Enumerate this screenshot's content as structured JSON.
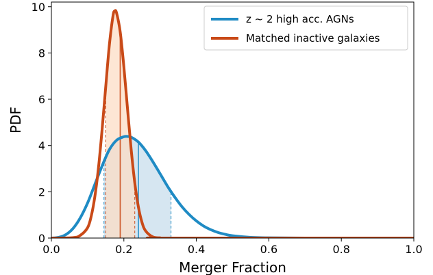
{
  "chart_data": {
    "type": "line",
    "xlabel": "Merger Fraction",
    "ylabel": "PDF",
    "xlim": [
      0.0,
      1.0
    ],
    "ylim": [
      0,
      10.2
    ],
    "xticks": [
      "0.0",
      "0.2",
      "0.4",
      "0.6",
      "0.8",
      "1.0"
    ],
    "yticks": [
      "0",
      "2",
      "4",
      "6",
      "8",
      "10"
    ],
    "legend_position": "top-right",
    "series": [
      {
        "name": "z ~ 2 high acc. AGNs",
        "color": "#1f8bc4",
        "fill_color": "#c6dcec",
        "x": [
          0.0,
          0.02,
          0.04,
          0.06,
          0.08,
          0.1,
          0.12,
          0.14,
          0.16,
          0.18,
          0.2,
          0.21,
          0.22,
          0.24,
          0.26,
          0.28,
          0.3,
          0.32,
          0.34,
          0.36,
          0.38,
          0.4,
          0.42,
          0.44,
          0.46,
          0.48,
          0.5,
          0.55,
          0.6,
          0.7,
          0.8,
          1.0
        ],
        "y": [
          0.0,
          0.03,
          0.15,
          0.42,
          0.88,
          1.52,
          2.32,
          3.12,
          3.82,
          4.23,
          4.38,
          4.39,
          4.36,
          4.15,
          3.78,
          3.3,
          2.78,
          2.25,
          1.78,
          1.36,
          1.02,
          0.74,
          0.52,
          0.36,
          0.24,
          0.16,
          0.1,
          0.03,
          0.01,
          0.0,
          0.0,
          0.0
        ],
        "median": 0.24,
        "interval": [
          0.145,
          0.33
        ]
      },
      {
        "name": "Matched inactive galaxies",
        "color": "#c94a18",
        "fill_color": "#fcdcc4",
        "x": [
          0.0,
          0.06,
          0.08,
          0.1,
          0.11,
          0.12,
          0.13,
          0.14,
          0.15,
          0.16,
          0.17,
          0.175,
          0.18,
          0.19,
          0.2,
          0.21,
          0.22,
          0.23,
          0.24,
          0.25,
          0.26,
          0.28,
          0.3,
          0.32,
          1.0
        ],
        "y": [
          0.0,
          0.02,
          0.12,
          0.45,
          0.95,
          1.8,
          3.05,
          4.7,
          6.55,
          8.35,
          9.6,
          9.82,
          9.72,
          8.9,
          7.4,
          5.6,
          3.85,
          2.4,
          1.35,
          0.68,
          0.31,
          0.05,
          0.01,
          0.0,
          0.0
        ],
        "median": 0.19,
        "interval": [
          0.15,
          0.23
        ]
      }
    ]
  }
}
